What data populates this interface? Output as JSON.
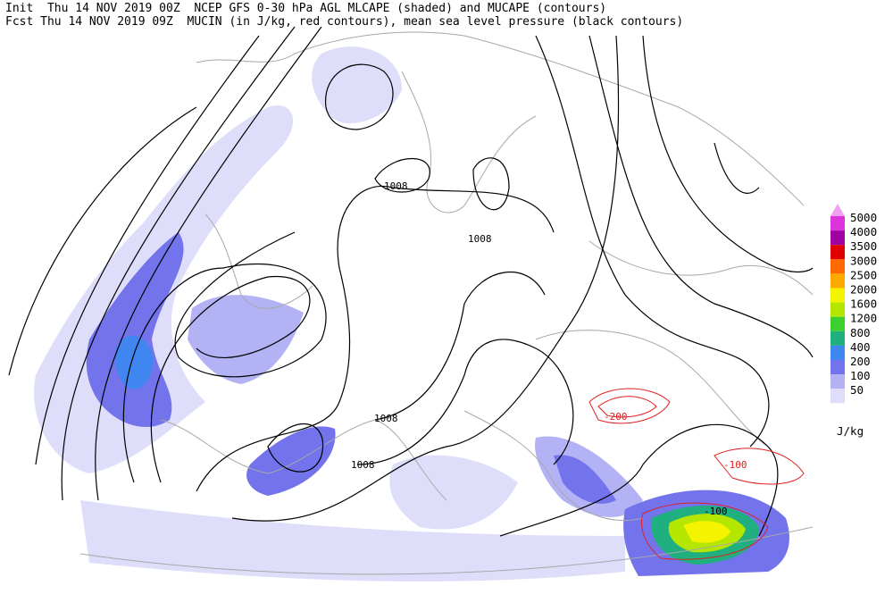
{
  "header": {
    "line1": "Init  Thu 14 NOV 2019 00Z  NCEP GFS 0-30 hPa AGL MLCAPE (shaded) and MUCAPE (contours)",
    "line2": "Fcst Thu 14 NOV 2019 09Z  MUCIN (in J/kg, red contours), mean sea level pressure (black contours)"
  },
  "contour_labels": [
    "1008",
    "1008",
    "1008",
    "1008",
    "-200",
    "-100",
    "-100"
  ],
  "legend": {
    "unit": "J/kg",
    "items": [
      {
        "label": 5000,
        "color": "#dd33dd"
      },
      {
        "label": 4000,
        "color": "#a000a0"
      },
      {
        "label": 3500,
        "color": "#e00000"
      },
      {
        "label": 3000,
        "color": "#ff6a00"
      },
      {
        "label": 2500,
        "color": "#ffaa00"
      },
      {
        "label": 2000,
        "color": "#f4f400"
      },
      {
        "label": 1600,
        "color": "#b4e600"
      },
      {
        "label": 1200,
        "color": "#3ccf30"
      },
      {
        "label": 800,
        "color": "#20b080"
      },
      {
        "label": 400,
        "color": "#3f86f0"
      },
      {
        "label": 200,
        "color": "#7373ec"
      },
      {
        "label": 100,
        "color": "#b2b2f4"
      },
      {
        "label": 50,
        "color": "#dedefa"
      }
    ]
  }
}
